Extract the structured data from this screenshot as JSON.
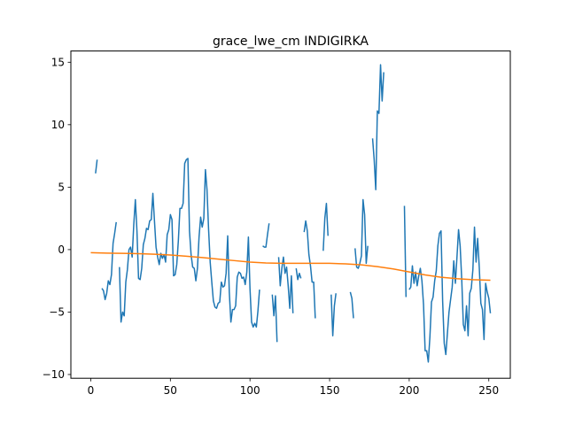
{
  "chart_data": {
    "type": "line",
    "title": "grace_lwe_cm INDIGIRKA",
    "xlabel": "",
    "ylabel": "",
    "xlim": [
      -12.5,
      263.5
    ],
    "ylim": [
      -10.3,
      15.9
    ],
    "xticks": [
      0,
      50,
      100,
      150,
      200,
      250
    ],
    "yticks": [
      -10,
      -5,
      0,
      5,
      10,
      15
    ],
    "grid": false,
    "colors": {
      "series1": "#1f77b4",
      "series2": "#ff7f0e"
    },
    "series": [
      {
        "segments": [
          [
            [
              3,
              6.1
            ],
            [
              4,
              7.2
            ]
          ],
          [
            [
              7,
              -3.1
            ],
            [
              8,
              -3.3
            ],
            [
              9,
              -4.0
            ],
            [
              10,
              -3.5
            ],
            [
              11,
              -2.5
            ],
            [
              12,
              -2.8
            ],
            [
              13,
              -2.0
            ],
            [
              14,
              0.5
            ],
            [
              15,
              1.3
            ],
            [
              16,
              2.2
            ]
          ],
          [
            [
              18,
              -1.4
            ],
            [
              19,
              -5.8
            ],
            [
              20,
              -5.0
            ],
            [
              21,
              -5.3
            ],
            [
              22,
              -2.6
            ],
            [
              23,
              -1.6
            ],
            [
              24,
              0.0
            ],
            [
              25,
              0.2
            ],
            [
              26,
              -0.6
            ],
            [
              27,
              2.0
            ],
            [
              28,
              4.0
            ],
            [
              29,
              1.5
            ],
            [
              30,
              -2.3
            ],
            [
              31,
              -2.4
            ],
            [
              32,
              -1.5
            ],
            [
              33,
              0.4
            ],
            [
              34,
              0.9
            ],
            [
              35,
              1.7
            ],
            [
              36,
              1.6
            ],
            [
              37,
              2.3
            ],
            [
              38,
              2.4
            ],
            [
              39,
              4.5
            ],
            [
              40,
              2.3
            ],
            [
              41,
              0.2
            ],
            [
              42,
              -0.6
            ],
            [
              43,
              -1.2
            ],
            [
              44,
              -0.3
            ],
            [
              45,
              -0.7
            ],
            [
              46,
              -0.4
            ],
            [
              47,
              -1.0
            ],
            [
              48,
              1.2
            ],
            [
              49,
              1.6
            ],
            [
              50,
              2.8
            ],
            [
              51,
              2.4
            ],
            [
              52,
              -2.1
            ],
            [
              53,
              -2.0
            ],
            [
              54,
              -1.2
            ],
            [
              55,
              0.7
            ],
            [
              56,
              3.3
            ],
            [
              57,
              3.3
            ],
            [
              58,
              3.7
            ],
            [
              59,
              6.9
            ],
            [
              60,
              7.2
            ],
            [
              61,
              7.3
            ],
            [
              62,
              1.5
            ],
            [
              63,
              -0.4
            ],
            [
              64,
              -1.4
            ],
            [
              65,
              -1.5
            ],
            [
              66,
              -2.5
            ],
            [
              67,
              -1.5
            ],
            [
              68,
              1.0
            ],
            [
              69,
              2.6
            ],
            [
              70,
              1.8
            ],
            [
              71,
              2.5
            ],
            [
              72,
              6.4
            ],
            [
              73,
              4.8
            ],
            [
              74,
              1.6
            ],
            [
              75,
              -1.0
            ],
            [
              76,
              -2.6
            ],
            [
              77,
              -4.1
            ],
            [
              78,
              -4.6
            ],
            [
              79,
              -4.7
            ],
            [
              80,
              -4.3
            ],
            [
              81,
              -4.2
            ],
            [
              82,
              -2.6
            ],
            [
              83,
              -3.0
            ],
            [
              84,
              -2.9
            ],
            [
              85,
              -1.9
            ],
            [
              86,
              1.1
            ],
            [
              87,
              -3.4
            ],
            [
              88,
              -5.8
            ],
            [
              89,
              -4.8
            ],
            [
              90,
              -4.8
            ],
            [
              91,
              -4.5
            ],
            [
              92,
              -2.2
            ],
            [
              93,
              -1.8
            ],
            [
              94,
              -1.9
            ],
            [
              95,
              -2.3
            ],
            [
              96,
              -2.2
            ],
            [
              97,
              -2.8
            ],
            [
              98,
              -1.8
            ],
            [
              99,
              1.0
            ],
            [
              100,
              -3.1
            ],
            [
              101,
              -5.8
            ],
            [
              102,
              -6.2
            ],
            [
              103,
              -5.9
            ],
            [
              104,
              -6.2
            ],
            [
              105,
              -4.9
            ],
            [
              106,
              -3.2
            ]
          ],
          [
            [
              108,
              0.3
            ],
            [
              109,
              0.2
            ],
            [
              110,
              0.2
            ],
            [
              111,
              1.2
            ],
            [
              112,
              2.1
            ]
          ],
          [
            [
              114,
              -3.6
            ],
            [
              115,
              -5.3
            ],
            [
              116,
              -3.7
            ],
            [
              117,
              -7.4
            ]
          ],
          [
            [
              118,
              -0.6
            ],
            [
              119,
              -2.9
            ],
            [
              120,
              -1.5
            ],
            [
              121,
              -0.6
            ],
            [
              122,
              -1.9
            ],
            [
              123,
              -1.4
            ],
            [
              124,
              -2.9
            ],
            [
              125,
              -4.7
            ],
            [
              126,
              -2.1
            ],
            [
              127,
              -5.1
            ]
          ],
          [
            [
              129,
              -1.5
            ],
            [
              130,
              -2.4
            ],
            [
              131,
              -1.9
            ],
            [
              132,
              -2.3
            ]
          ],
          [
            [
              134,
              1.4
            ],
            [
              135,
              2.3
            ],
            [
              136,
              1.5
            ],
            [
              137,
              -0.4
            ],
            [
              138,
              -1.3
            ],
            [
              139,
              -2.6
            ],
            [
              140,
              -2.6
            ],
            [
              141,
              -5.5
            ]
          ],
          [
            [
              146,
              -0.1
            ],
            [
              147,
              2.5
            ],
            [
              148,
              3.7
            ],
            [
              149,
              1.1
            ]
          ],
          [
            [
              151,
              -3.6
            ],
            [
              152,
              -6.9
            ],
            [
              153,
              -4.5
            ],
            [
              154,
              -3.5
            ]
          ],
          [
            [
              163,
              -3.4
            ],
            [
              164,
              -3.9
            ],
            [
              165,
              -5.5
            ]
          ],
          [
            [
              166,
              0.1
            ],
            [
              167,
              -1.4
            ],
            [
              168,
              -1.5
            ],
            [
              169,
              -1.1
            ],
            [
              170,
              -0.5
            ],
            [
              171,
              4.0
            ],
            [
              172,
              2.8
            ],
            [
              173,
              -1.1
            ],
            [
              174,
              0.3
            ]
          ],
          [
            [
              177,
              8.9
            ],
            [
              178,
              7.2
            ],
            [
              179,
              4.8
            ],
            [
              180,
              11.1
            ],
            [
              181,
              10.9
            ],
            [
              182,
              14.8
            ],
            [
              183,
              11.9
            ],
            [
              184,
              14.2
            ]
          ],
          [
            [
              197,
              3.5
            ],
            [
              198,
              -3.8
            ]
          ],
          [
            [
              200,
              -3.2
            ],
            [
              201,
              -3.0
            ],
            [
              202,
              -1.3
            ],
            [
              203,
              -2.7
            ],
            [
              204,
              -1.8
            ],
            [
              205,
              -2.9
            ],
            [
              206,
              -2.1
            ],
            [
              207,
              -1.5
            ],
            [
              208,
              -2.5
            ],
            [
              209,
              -4.4
            ],
            [
              210,
              -8.1
            ],
            [
              211,
              -8.1
            ],
            [
              212,
              -9.0
            ],
            [
              213,
              -7.0
            ],
            [
              214,
              -4.2
            ],
            [
              215,
              -3.8
            ],
            [
              216,
              -2.5
            ],
            [
              217,
              -1.7
            ],
            [
              218,
              0.3
            ],
            [
              219,
              1.3
            ],
            [
              220,
              1.5
            ],
            [
              221,
              -4.1
            ],
            [
              222,
              -7.5
            ],
            [
              223,
              -8.4
            ],
            [
              224,
              -6.7
            ],
            [
              225,
              -5.0
            ],
            [
              226,
              -4.0
            ],
            [
              227,
              -3.0
            ],
            [
              228,
              -0.9
            ],
            [
              229,
              -2.7
            ],
            [
              230,
              -0.6
            ],
            [
              231,
              1.6
            ],
            [
              232,
              0.3
            ],
            [
              233,
              -2.4
            ],
            [
              234,
              -6.0
            ],
            [
              235,
              -6.5
            ],
            [
              236,
              -4.5
            ],
            [
              237,
              -6.9
            ],
            [
              238,
              -3.5
            ],
            [
              239,
              -3.1
            ],
            [
              240,
              -1.6
            ],
            [
              241,
              1.8
            ],
            [
              242,
              -1.0
            ],
            [
              243,
              0.9
            ],
            [
              244,
              -1.4
            ],
            [
              245,
              -4.3
            ],
            [
              246,
              -4.8
            ],
            [
              247,
              -7.2
            ],
            [
              248,
              -2.7
            ],
            [
              249,
              -3.4
            ],
            [
              250,
              -3.9
            ],
            [
              251,
              -5.1
            ]
          ]
        ]
      },
      {
        "segments": [
          [
            [
              0,
              -0.25
            ],
            [
              10,
              -0.28
            ],
            [
              20,
              -0.3
            ],
            [
              30,
              -0.33
            ],
            [
              40,
              -0.37
            ],
            [
              50,
              -0.43
            ],
            [
              60,
              -0.53
            ],
            [
              70,
              -0.64
            ],
            [
              80,
              -0.76
            ],
            [
              90,
              -0.88
            ],
            [
              100,
              -1.0
            ],
            [
              110,
              -1.07
            ],
            [
              120,
              -1.1
            ],
            [
              130,
              -1.1
            ],
            [
              140,
              -1.1
            ],
            [
              150,
              -1.1
            ],
            [
              160,
              -1.14
            ],
            [
              170,
              -1.22
            ],
            [
              180,
              -1.36
            ],
            [
              190,
              -1.55
            ],
            [
              200,
              -1.79
            ],
            [
              210,
              -2.03
            ],
            [
              220,
              -2.21
            ],
            [
              230,
              -2.33
            ],
            [
              240,
              -2.41
            ],
            [
              251,
              -2.45
            ]
          ]
        ]
      }
    ]
  }
}
